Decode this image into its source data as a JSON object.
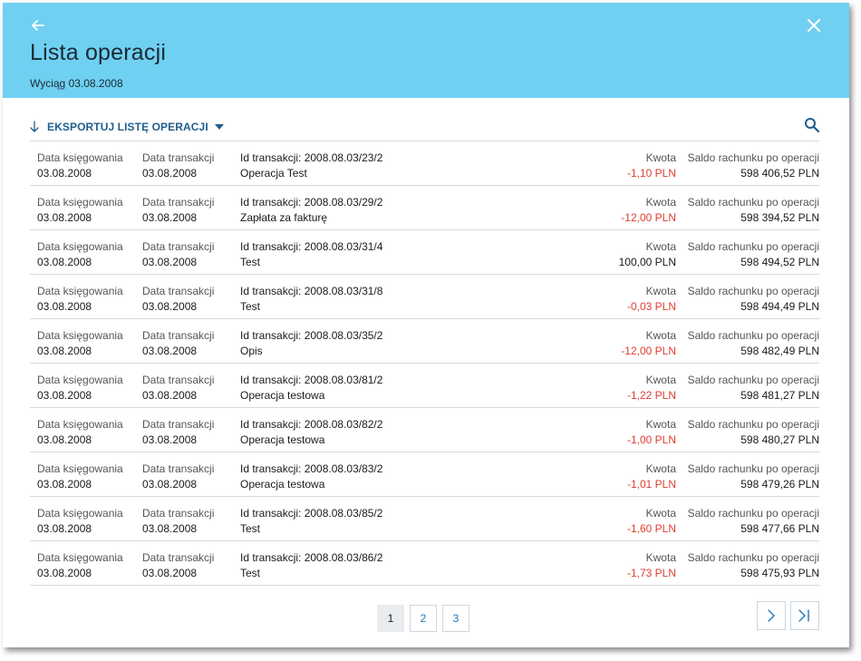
{
  "header": {
    "title": "Lista operacji",
    "subtitle": "Wyciąg 03.08.2008",
    "back_icon": "arrow-left-icon",
    "close_icon": "close-icon"
  },
  "toolbar": {
    "export_label": "EKSPORTUJ LISTĘ OPERACJI",
    "export_icon": "download-arrow-icon",
    "search_icon": "search-icon"
  },
  "labels": {
    "booking_date": "Data księgowania",
    "transaction_date": "Data transakcji",
    "amount": "Kwota",
    "balance": "Saldo rachunku po operacji"
  },
  "rows": [
    {
      "booking_date": "03.08.2008",
      "transaction_date": "03.08.2008",
      "transaction_id": "Id transakcji: 2008.08.03/23/2",
      "description": "Operacja Test",
      "amount": "-1,10  PLN",
      "negative": true,
      "balance": "598 406,52  PLN"
    },
    {
      "booking_date": "03.08.2008",
      "transaction_date": "03.08.2008",
      "transaction_id": "Id transakcji: 2008.08.03/29/2",
      "description": "Zapłata za fakturę",
      "amount": "-12,00  PLN",
      "negative": true,
      "balance": "598 394,52  PLN"
    },
    {
      "booking_date": "03.08.2008",
      "transaction_date": "03.08.2008",
      "transaction_id": "Id transakcji: 2008.08.03/31/4",
      "description": "Test",
      "amount": "100,00  PLN",
      "negative": false,
      "balance": "598 494,52  PLN"
    },
    {
      "booking_date": "03.08.2008",
      "transaction_date": "03.08.2008",
      "transaction_id": "Id transakcji: 2008.08.03/31/8",
      "description": "Test",
      "amount": "-0,03  PLN",
      "negative": true,
      "balance": "598 494,49  PLN"
    },
    {
      "booking_date": "03.08.2008",
      "transaction_date": "03.08.2008",
      "transaction_id": "Id transakcji: 2008.08.03/35/2",
      "description": "Opis",
      "amount": "-12,00  PLN",
      "negative": true,
      "balance": "598 482,49  PLN"
    },
    {
      "booking_date": "03.08.2008",
      "transaction_date": "03.08.2008",
      "transaction_id": "Id transakcji: 2008.08.03/81/2",
      "description": "Operacja testowa",
      "amount": "-1,22  PLN",
      "negative": true,
      "balance": "598 481,27  PLN"
    },
    {
      "booking_date": "03.08.2008",
      "transaction_date": "03.08.2008",
      "transaction_id": "Id transakcji: 2008.08.03/82/2",
      "description": "Operacja testowa",
      "amount": "-1,00  PLN",
      "negative": true,
      "balance": "598 480,27  PLN"
    },
    {
      "booking_date": "03.08.2008",
      "transaction_date": "03.08.2008",
      "transaction_id": "Id transakcji: 2008.08.03/83/2",
      "description": "Operacja testowa",
      "amount": "-1,01  PLN",
      "negative": true,
      "balance": "598 479,26  PLN"
    },
    {
      "booking_date": "03.08.2008",
      "transaction_date": "03.08.2008",
      "transaction_id": "Id transakcji: 2008.08.03/85/2",
      "description": "Test",
      "amount": "-1,60  PLN",
      "negative": true,
      "balance": "598 477,66  PLN"
    },
    {
      "booking_date": "03.08.2008",
      "transaction_date": "03.08.2008",
      "transaction_id": "Id transakcji: 2008.08.03/86/2",
      "description": "Test",
      "amount": "-1,73  PLN",
      "negative": true,
      "balance": "598 475,93  PLN"
    }
  ],
  "pagination": {
    "pages": [
      "1",
      "2",
      "3"
    ],
    "current": "1",
    "next_icon": "chevron-right-icon",
    "last_icon": "last-page-icon"
  },
  "colors": {
    "header_bg": "#70d0f2",
    "accent": "#1f5d8c",
    "negative_amount": "#e03c31"
  }
}
